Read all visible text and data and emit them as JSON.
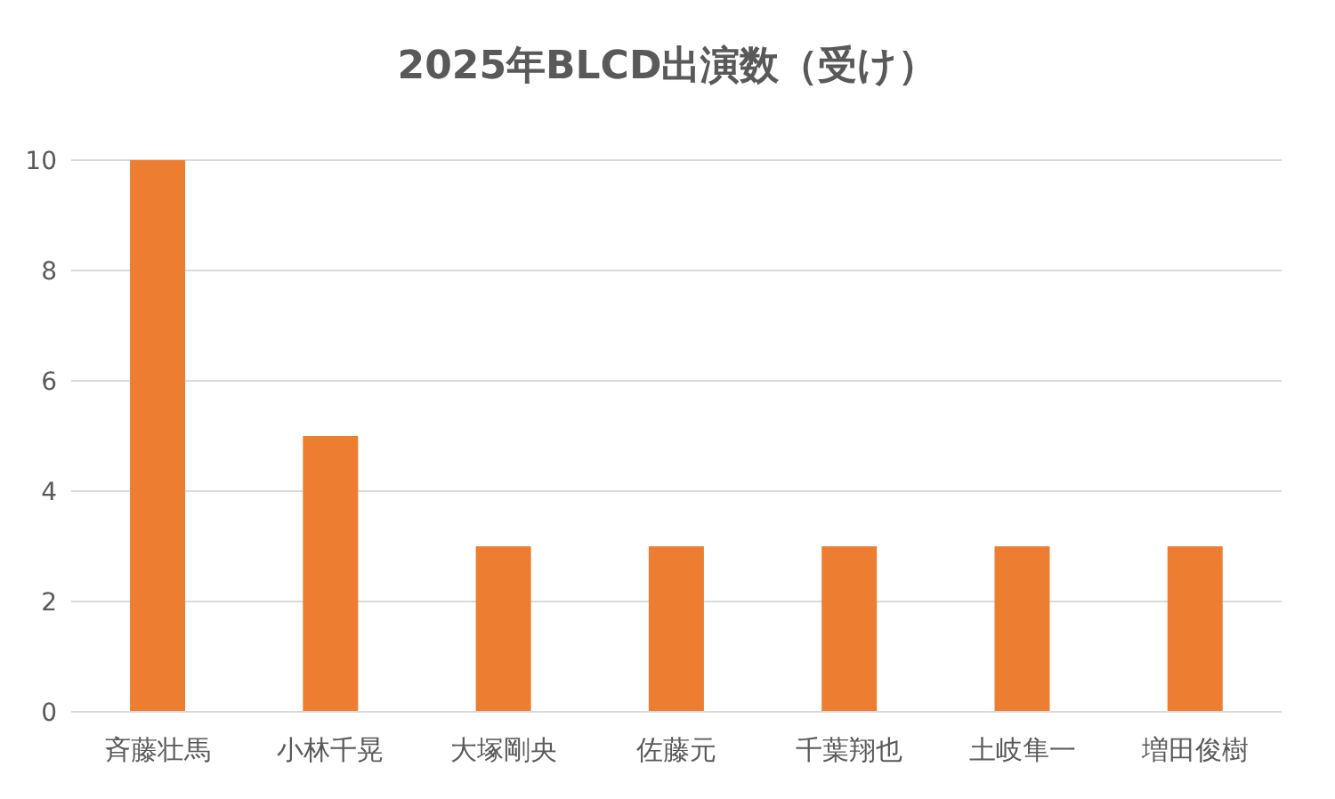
{
  "chart_data": {
    "type": "bar",
    "title": "2025年BLCD出演数（受け）",
    "categories": [
      "斉藤壮馬",
      "小林千晃",
      "大塚剛央",
      "佐藤元",
      "千葉翔也",
      "土岐隼一",
      "増田俊樹"
    ],
    "values": [
      10,
      5,
      3,
      3,
      3,
      3,
      3
    ],
    "color": "#ed7d31",
    "ylim": [
      0,
      10
    ],
    "yticks": [
      0,
      2,
      4,
      6,
      8,
      10
    ],
    "grid": "y"
  }
}
